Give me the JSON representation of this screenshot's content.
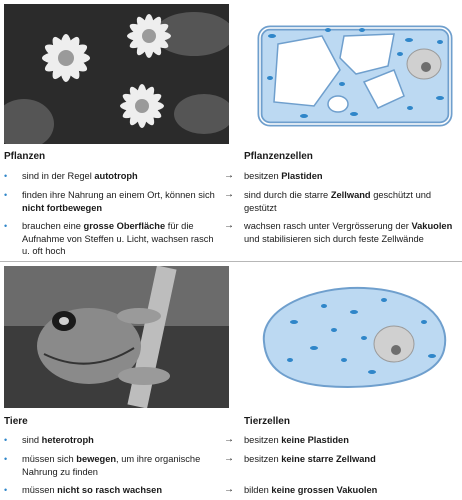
{
  "pflanzen": {
    "heading": "Pflanzen",
    "items": [
      [
        {
          "t": "sind in der Regel "
        },
        {
          "t": "autotroph",
          "b": true
        }
      ],
      [
        {
          "t": "finden ihre Nahrung an einem Ort, können sich "
        },
        {
          "t": "nicht fortbewegen",
          "b": true
        }
      ],
      [
        {
          "t": "brauchen eine "
        },
        {
          "t": "grosse Oberfläche",
          "b": true
        },
        {
          "t": " für die Aufnahme von Steffen u. Licht, wachsen rasch u. oft hoch"
        }
      ]
    ]
  },
  "pflanzenzellen": {
    "heading": "Pflanzenzellen",
    "items": [
      [
        {
          "t": "besitzen "
        },
        {
          "t": "Plastiden",
          "b": true
        }
      ],
      [
        {
          "t": "sind durch die starre "
        },
        {
          "t": "Zellwand",
          "b": true
        },
        {
          "t": " geschützt und gestützt"
        }
      ],
      [
        {
          "t": "wachsen rasch unter Vergrösserung der "
        },
        {
          "t": "Vakuolen",
          "b": true
        },
        {
          "t": " und stabilisieren sich durch feste Zellwände"
        }
      ]
    ]
  },
  "tiere": {
    "heading": "Tiere",
    "items": [
      [
        {
          "t": "sind "
        },
        {
          "t": "heterotroph",
          "b": true
        }
      ],
      [
        {
          "t": "müssen sich "
        },
        {
          "t": "bewegen",
          "b": true
        },
        {
          "t": ", um ihre organische Nahrung zu finden"
        }
      ],
      [
        {
          "t": "müssen "
        },
        {
          "t": "nicht so rasch wachsen",
          "b": true
        }
      ]
    ]
  },
  "tierzellen": {
    "heading": "Tierzellen",
    "items": [
      [
        {
          "t": "besitzen "
        },
        {
          "t": "keine Plastiden",
          "b": true
        }
      ],
      [
        {
          "t": "besitzen "
        },
        {
          "t": "keine starre Zellwand",
          "b": true
        }
      ],
      [
        {
          "t": "bilden "
        },
        {
          "t": "keine grossen Vakuolen",
          "b": true
        }
      ]
    ]
  },
  "symbols": {
    "bullet": "•",
    "arrow": "→"
  },
  "colors": {
    "cytoplasm": "#bcd9f2",
    "cell_outline": "#6f9fcd",
    "plastid": "#2f86c9",
    "bullet": "#2f86c9"
  }
}
